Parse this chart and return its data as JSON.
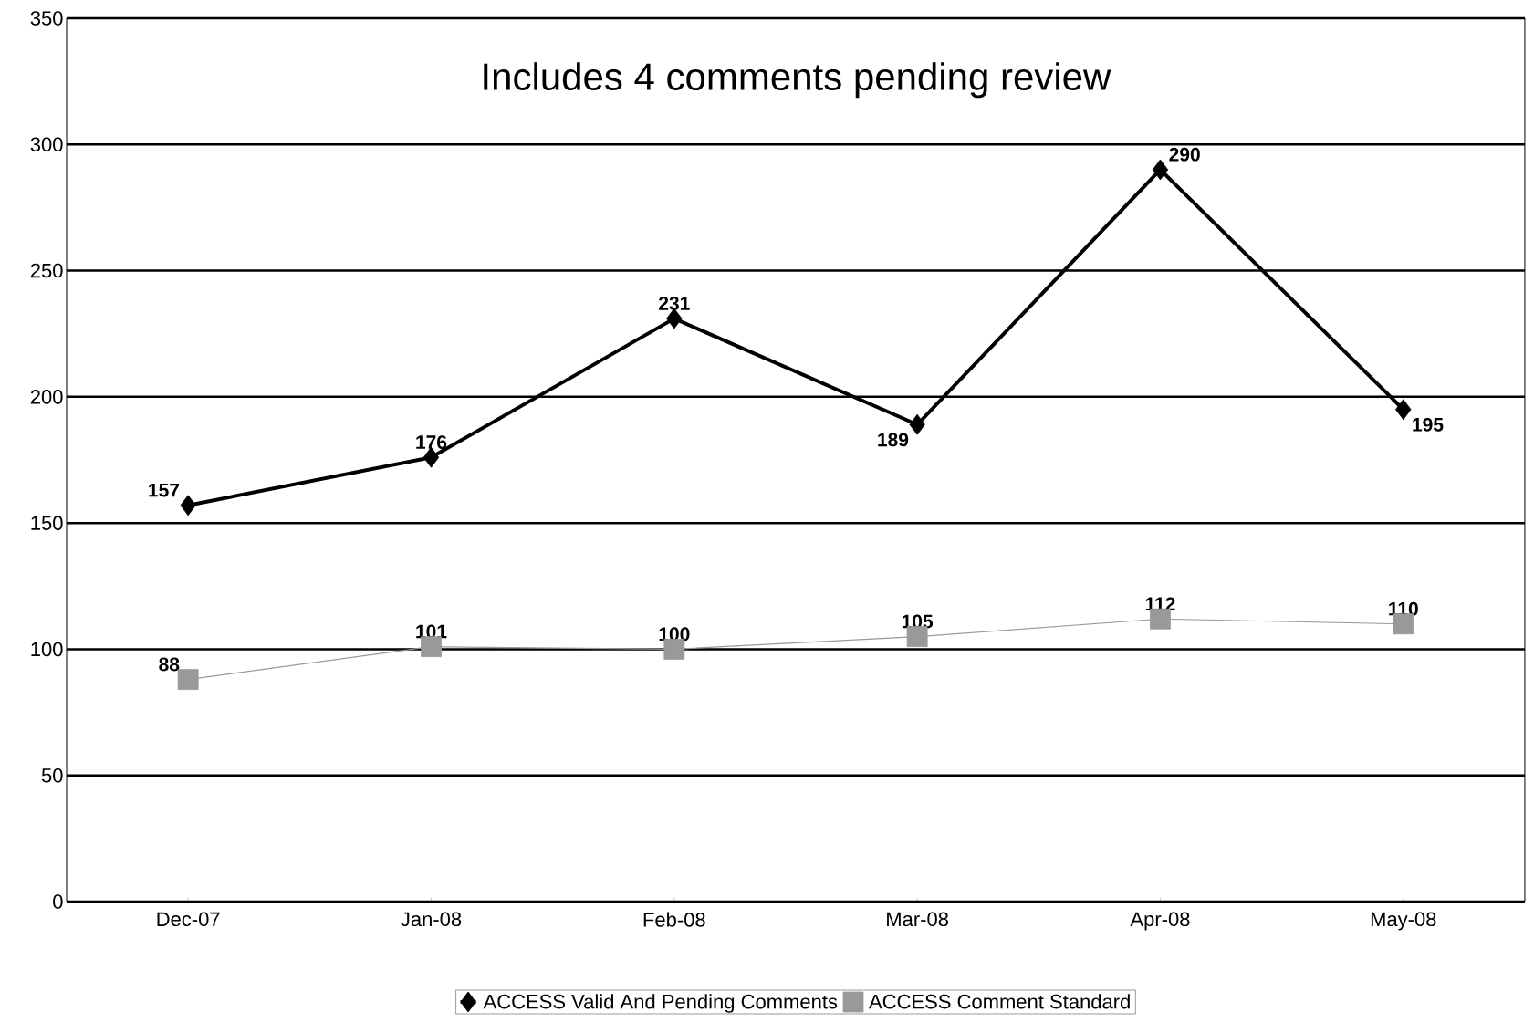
{
  "chart_data": {
    "type": "line",
    "annotations": [
      "Includes 4 comments pending review"
    ],
    "categories": [
      "Dec-07",
      "Jan-08",
      "Feb-08",
      "Mar-08",
      "Apr-08",
      "May-08"
    ],
    "series": [
      {
        "name": "ACCESS Valid And Pending Comments",
        "color": "#000000",
        "marker": "diamond",
        "values": [
          157,
          176,
          231,
          189,
          290,
          195
        ]
      },
      {
        "name": "ACCESS Comment Standard",
        "color": "#999999",
        "marker": "square",
        "values": [
          88,
          101,
          100,
          105,
          112,
          110
        ]
      }
    ],
    "ylim": [
      0,
      350
    ],
    "yticks": [
      0,
      50,
      100,
      150,
      200,
      250,
      300,
      350
    ],
    "grid": "y",
    "legend": "bottom",
    "data_labels": true
  }
}
